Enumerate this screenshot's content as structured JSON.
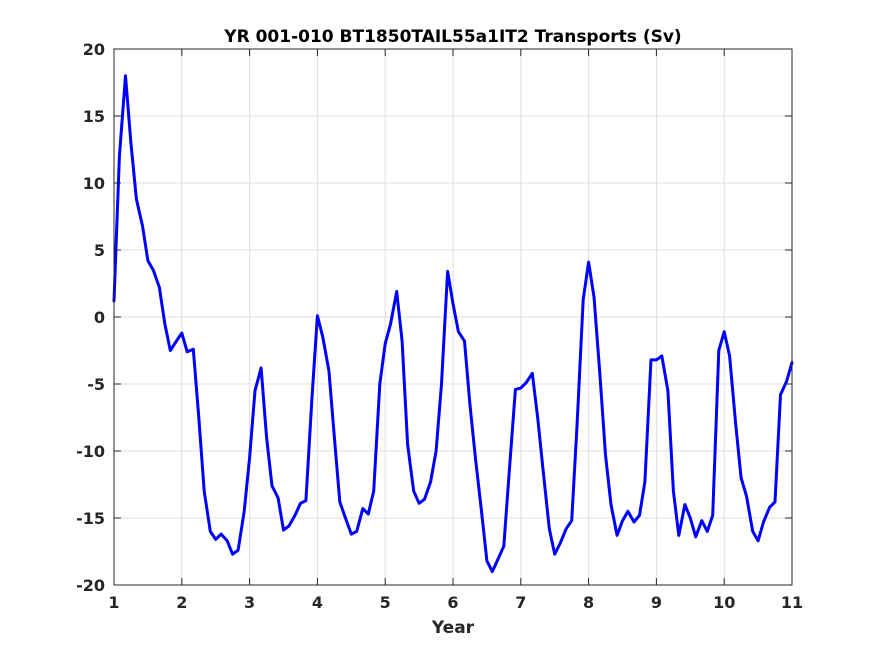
{
  "chart_data": {
    "type": "line",
    "title": "YR 001-010 BT1850TAIL55a1IT2 Transports (Sv)",
    "xlabel": "Year",
    "ylabel": "",
    "xlim": [
      1,
      11
    ],
    "ylim": [
      -20,
      20
    ],
    "xticks": [
      1,
      2,
      3,
      4,
      5,
      6,
      7,
      8,
      9,
      10,
      11
    ],
    "yticks": [
      -20,
      -15,
      -10,
      -5,
      0,
      5,
      10,
      15,
      20
    ],
    "grid": true,
    "legend": "none",
    "series": [
      {
        "color": "#0000ff",
        "x": [
          1.0,
          1.08,
          1.17,
          1.25,
          1.33,
          1.42,
          1.5,
          1.58,
          1.67,
          1.75,
          1.83,
          1.92,
          2.0,
          2.08,
          2.17,
          2.25,
          2.33,
          2.42,
          2.5,
          2.58,
          2.67,
          2.75,
          2.83,
          2.92,
          3.0,
          3.08,
          3.17,
          3.25,
          3.33,
          3.42,
          3.5,
          3.58,
          3.67,
          3.75,
          3.83,
          3.92,
          4.0,
          4.08,
          4.17,
          4.25,
          4.33,
          4.42,
          4.5,
          4.58,
          4.67,
          4.75,
          4.83,
          4.92,
          5.0,
          5.08,
          5.17,
          5.25,
          5.33,
          5.42,
          5.5,
          5.58,
          5.67,
          5.75,
          5.83,
          5.92,
          6.0,
          6.08,
          6.17,
          6.25,
          6.33,
          6.42,
          6.5,
          6.58,
          6.67,
          6.75,
          6.83,
          6.92,
          7.0,
          7.08,
          7.17,
          7.25,
          7.33,
          7.42,
          7.5,
          7.58,
          7.67,
          7.75,
          7.83,
          7.92,
          8.0,
          8.08,
          8.17,
          8.25,
          8.33,
          8.42,
          8.5,
          8.58,
          8.67,
          8.75,
          8.83,
          8.92,
          9.0,
          9.08,
          9.17,
          9.25,
          9.33,
          9.42,
          9.5,
          9.58,
          9.67,
          9.75,
          9.83,
          9.92,
          10.0,
          10.08,
          10.17,
          10.25,
          10.33,
          10.42,
          10.5,
          10.58,
          10.67,
          10.75,
          10.83,
          10.92,
          11.0
        ],
        "y": [
          1.2,
          12.0,
          18.0,
          13.0,
          8.8,
          6.8,
          4.2,
          3.5,
          2.2,
          -0.5,
          -2.5,
          -1.8,
          -1.2,
          -2.6,
          -2.4,
          -7.5,
          -13.0,
          -16.0,
          -16.6,
          -16.2,
          -16.7,
          -17.7,
          -17.4,
          -14.5,
          -10.5,
          -5.5,
          -3.8,
          -9.0,
          -12.6,
          -13.5,
          -15.9,
          -15.6,
          -14.8,
          -13.9,
          -13.7,
          -6.0,
          0.1,
          -1.5,
          -4.0,
          -9.0,
          -13.8,
          -15.1,
          -16.2,
          -16.0,
          -14.3,
          -14.7,
          -13.0,
          -5.0,
          -2.0,
          -0.5,
          1.9,
          -1.8,
          -9.5,
          -13.0,
          -13.9,
          -13.6,
          -12.3,
          -10.0,
          -5.0,
          3.4,
          1.0,
          -1.1,
          -1.8,
          -6.5,
          -10.5,
          -14.5,
          -18.2,
          -19.0,
          -18.0,
          -17.1,
          -11.5,
          -5.4,
          -5.3,
          -4.9,
          -4.2,
          -7.6,
          -11.5,
          -15.8,
          -17.7,
          -16.9,
          -15.8,
          -15.2,
          -8.0,
          1.3,
          4.1,
          1.5,
          -4.5,
          -10.3,
          -14.0,
          -16.3,
          -15.2,
          -14.5,
          -15.3,
          -14.8,
          -12.3,
          -3.2,
          -3.2,
          -2.9,
          -5.5,
          -13.0,
          -16.3,
          -14.0,
          -15.0,
          -16.4,
          -15.2,
          -16.0,
          -14.8,
          -2.5,
          -1.1,
          -2.9,
          -8.0,
          -12.0,
          -13.4,
          -16.0,
          -16.7,
          -15.3,
          -14.2,
          -13.8,
          -5.8,
          -4.8,
          -3.4
        ]
      }
    ]
  }
}
